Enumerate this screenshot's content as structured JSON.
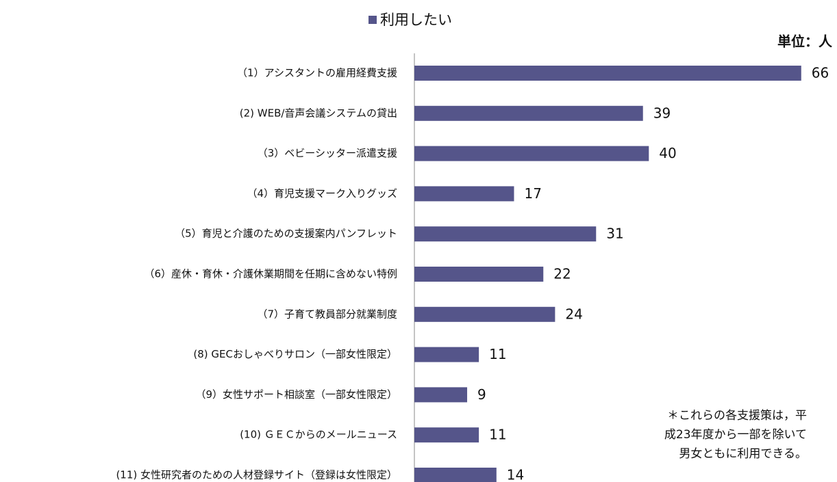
{
  "chart_data": {
    "type": "hbar",
    "unit": "単位：人",
    "categories": [
      "（1）アシスタントの雇用経費支援",
      "(2) WEB/音声会議システムの貸出",
      "（3）ベビーシッター派遣支援",
      "（4）育児支援マーク入りグッズ",
      "（5）育児と介護のための支援案内パンフレット",
      "（6）産休・育休・介護休業期間を任期に含めない特例",
      "（7）子育て教員部分就業制度",
      "(8) GECおしゃべりサロン（一部女性限定）",
      "（9）女性サポート相談室（一部女性限定）",
      "(10) ＧＥＣからのメールニュース",
      "(11) 女性研究者のための人材登録サイト（登録は女性限定）"
    ],
    "series": [
      {
        "name": "利用したい",
        "color": "#55558a",
        "values": [
          66,
          39,
          40,
          17,
          31,
          22,
          24,
          11,
          9,
          11,
          14
        ]
      }
    ],
    "xlim": [
      0,
      70
    ],
    "legend": "top",
    "note": [
      "＊これらの各支援策は，平",
      "成23年度から一部を除いて",
      "男女ともに利用できる。"
    ]
  }
}
